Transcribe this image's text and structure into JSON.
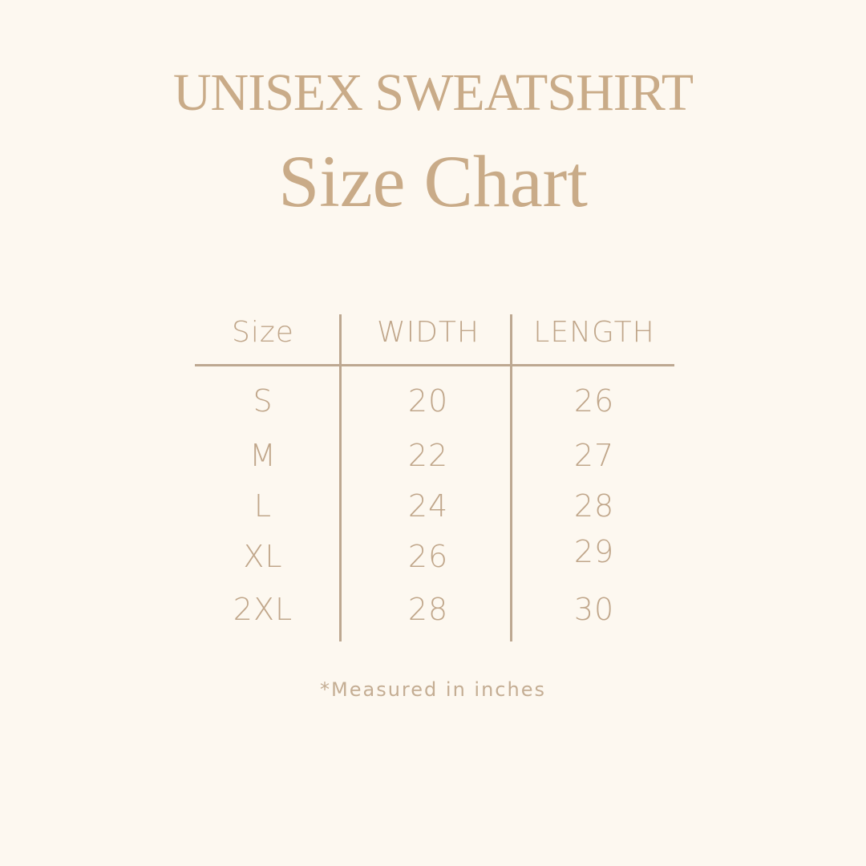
{
  "title": {
    "line1": "UNISEX SWEATSHIRT",
    "line2": "Size Chart"
  },
  "table": {
    "headers": [
      "Size",
      "WIDTH",
      "LENGTH"
    ],
    "rows": [
      [
        "S",
        "20",
        "26"
      ],
      [
        "M",
        "22",
        "27"
      ],
      [
        "L",
        "24",
        "28"
      ],
      [
        "XL",
        "26",
        "29"
      ],
      [
        "2XL",
        "28",
        "30"
      ]
    ]
  },
  "footnote": "*Measured in inches",
  "colors": {
    "background": "#fdf8f0",
    "text": "#c4a888",
    "lines": "#bda891"
  }
}
